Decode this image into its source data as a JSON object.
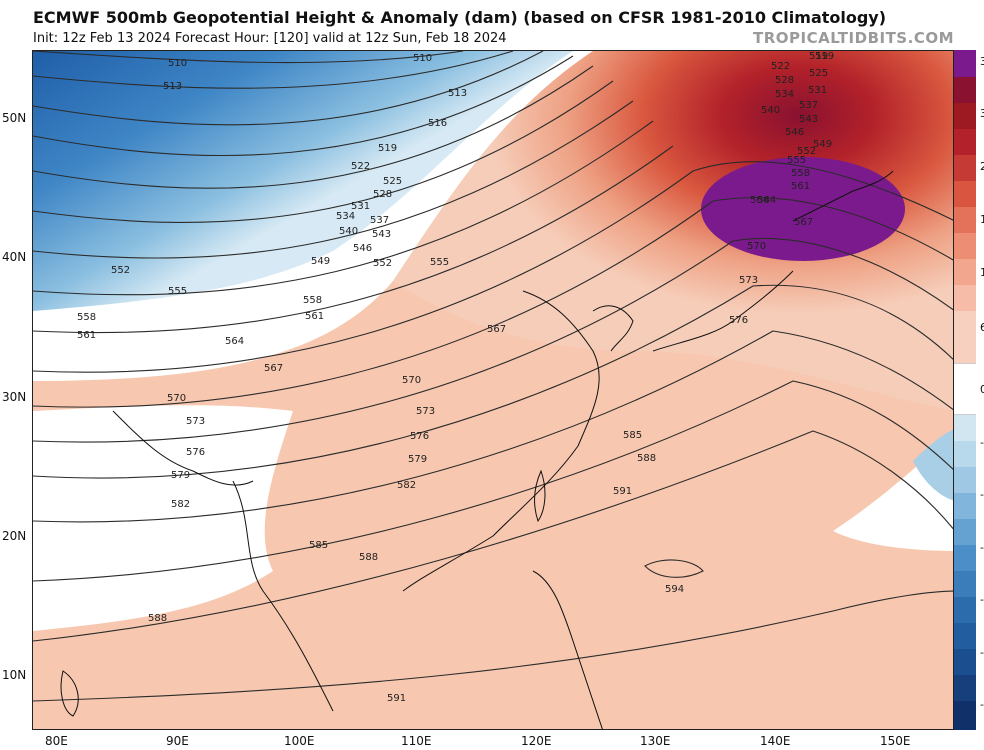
{
  "header": {
    "title": "ECMWF 500mb Geopotential Height & Anomaly (dam) (based on CFSR 1981-2010 Climatology)",
    "subtitle": "Init: 12z Feb 13 2024   Forecast Hour: [120]   valid at 12z Sun, Feb 18 2024",
    "watermark": "TROPICALTIDBITS.COM"
  },
  "map": {
    "lat_labels": [
      "50N",
      "40N",
      "30N",
      "20N",
      "10N"
    ],
    "lon_labels": [
      "80E",
      "90E",
      "100E",
      "110E",
      "120E",
      "130E",
      "140E",
      "150E"
    ],
    "contour_labels": [
      "510",
      "510",
      "513",
      "513",
      "516",
      "519",
      "519",
      "522",
      "525",
      "528",
      "531",
      "534",
      "537",
      "540",
      "543",
      "546",
      "549",
      "552",
      "552",
      "555",
      "555",
      "558",
      "558",
      "561",
      "561",
      "564",
      "564",
      "567",
      "567",
      "570",
      "570",
      "573",
      "573",
      "576",
      "576",
      "579",
      "579",
      "582",
      "582",
      "585",
      "585",
      "588",
      "588",
      "588",
      "591",
      "591",
      "594",
      "519",
      "522",
      "525",
      "528",
      "531",
      "534",
      "537",
      "540",
      "543",
      "546",
      "549",
      "552",
      "555",
      "558",
      "561",
      "564",
      "567",
      "570",
      "573",
      "576"
    ],
    "anomaly_colors": {
      "strong_positive": "#7b1a8c",
      "positive_dark": "#a5161f",
      "positive_mid": "#d8553f",
      "positive_light": "#f2b49b",
      "neutral": "#ffffff",
      "negative_light": "#a8cfe6",
      "negative_mid": "#4b8ec8",
      "negative_dark": "#1d5aa6"
    }
  },
  "colorbar": {
    "labels": [
      "3",
      "3",
      "2",
      "1",
      "1",
      "6",
      "0",
      "-",
      "-",
      "-",
      "-",
      "-",
      "-"
    ]
  }
}
